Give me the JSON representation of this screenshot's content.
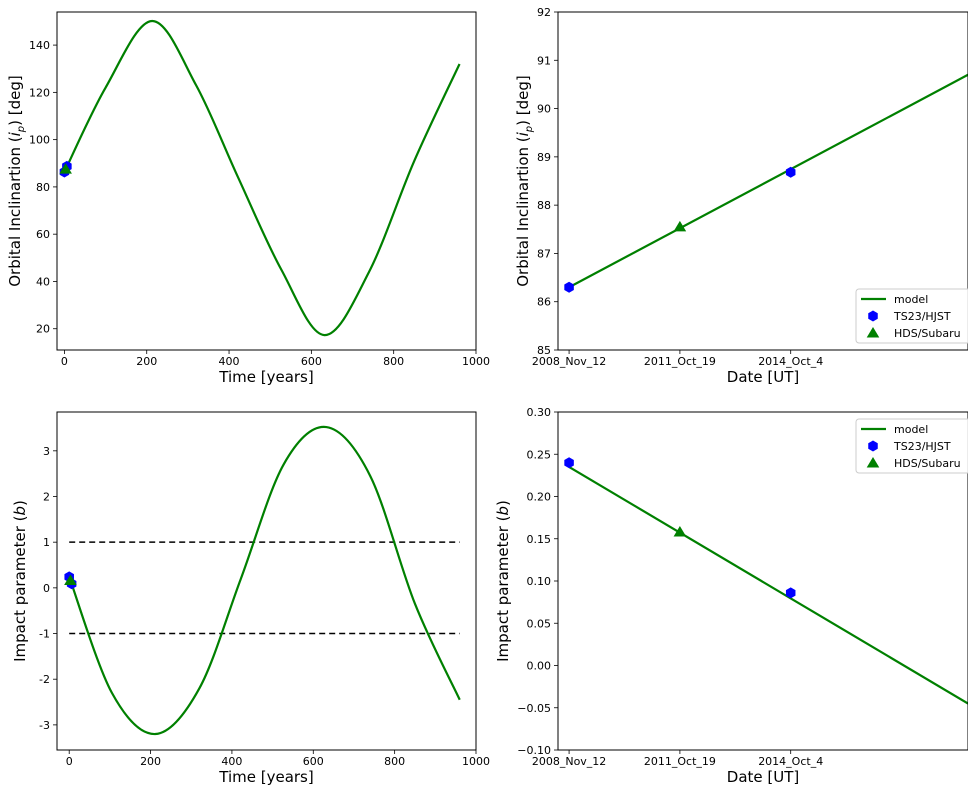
{
  "chart_data": [
    {
      "id": "tl",
      "type": "line",
      "xlabel": "Time [years]",
      "ylabel": "Orbital Inclinartion (i_p) [deg]",
      "ylabel_var": "i",
      "ylabel_sub": "p",
      "xlim": [
        -18,
        1000
      ],
      "ylim": [
        11,
        154
      ],
      "xticks": [
        0,
        200,
        400,
        600,
        800,
        1000
      ],
      "yticks": [
        20,
        40,
        60,
        80,
        100,
        120,
        140
      ],
      "model": {
        "name": "model",
        "x": [
          0,
          100,
          213,
          320,
          422,
          527,
          632,
          740,
          850,
          960
        ],
        "y": [
          86.3,
          122,
          150.2,
          123,
          84,
          45,
          17.3,
          44,
          91,
          132
        ]
      },
      "ts23": {
        "name": "TS23/HJST",
        "x": [
          0,
          6
        ],
        "y": [
          86.3,
          88.7
        ]
      },
      "hds": {
        "name": "HDS/Subaru",
        "x": [
          3
        ],
        "y": [
          87.5
        ]
      }
    },
    {
      "id": "tr",
      "type": "line",
      "xlabel": "Date [UT]",
      "ylabel": "Orbital Inclinartion (i_p) [deg]",
      "ylabel_var": "i",
      "ylabel_sub": "p",
      "xlim": [
        -0.3,
        10.8
      ],
      "ylim": [
        85,
        92
      ],
      "xticks": [
        0,
        3,
        6
      ],
      "xticklabels": [
        "2008_Nov_12",
        "2011_Oct_19",
        "2014_Oct_4"
      ],
      "yticks": [
        85,
        86,
        87,
        88,
        89,
        90,
        91,
        92
      ],
      "model": {
        "name": "model",
        "x": [
          0,
          10.8
        ],
        "y": [
          86.3,
          90.7
        ]
      },
      "ts23": {
        "name": "TS23/HJST",
        "x": [
          0,
          6
        ],
        "y": [
          86.3,
          88.68
        ]
      },
      "hds": {
        "name": "HDS/Subaru",
        "x": [
          3
        ],
        "y": [
          87.55
        ]
      },
      "legend": "lower right"
    },
    {
      "id": "bl",
      "type": "line",
      "xlabel": "Time [years]",
      "ylabel": "Impact parameter (b)",
      "ylabel_var": "b",
      "ylabel_sub": "",
      "xlim": [
        -30,
        1000
      ],
      "ylim": [
        -3.55,
        3.85
      ],
      "xticks": [
        0,
        200,
        400,
        600,
        800,
        1000
      ],
      "yticks": [
        -3,
        -2,
        -1,
        0,
        1,
        2,
        3
      ],
      "model": {
        "name": "model",
        "x": [
          0,
          105,
          212,
          320,
          422,
          527,
          632,
          740,
          850,
          960
        ],
        "y": [
          0.24,
          -2.3,
          -3.2,
          -2.2,
          0.2,
          2.7,
          3.52,
          2.45,
          -0.35,
          -2.45
        ]
      },
      "ts23": {
        "name": "TS23/HJST",
        "x": [
          0,
          6
        ],
        "y": [
          0.24,
          0.09
        ]
      },
      "hds": {
        "name": "HDS/Subaru",
        "x": [
          3
        ],
        "y": [
          0.16
        ]
      },
      "hlines": [
        1,
        -1
      ]
    },
    {
      "id": "br",
      "type": "line",
      "xlabel": "Date [UT]",
      "ylabel": "Impact parameter (b)",
      "ylabel_var": "b",
      "ylabel_sub": "",
      "xlim": [
        -0.3,
        10.8
      ],
      "ylim": [
        -0.1,
        0.3
      ],
      "xticks": [
        0,
        3,
        6
      ],
      "xticklabels": [
        "2008_Nov_12",
        "2011_Oct_19",
        "2014_Oct_4"
      ],
      "yticks": [
        -0.1,
        -0.05,
        0.0,
        0.05,
        0.1,
        0.15,
        0.2,
        0.25,
        0.3
      ],
      "yticklabels": [
        "−0.10",
        "−0.05",
        "0.00",
        "0.05",
        "0.10",
        "0.15",
        "0.20",
        "0.25",
        "0.30"
      ],
      "model": {
        "name": "model",
        "x": [
          0,
          10.8
        ],
        "y": [
          0.235,
          -0.045
        ]
      },
      "ts23": {
        "name": "TS23/HJST",
        "x": [
          0,
          6
        ],
        "y": [
          0.24,
          0.086
        ]
      },
      "hds": {
        "name": "HDS/Subaru",
        "x": [
          3
        ],
        "y": [
          0.158
        ]
      },
      "legend": "upper right"
    }
  ],
  "colors": {
    "model": "#008000",
    "ts23": "#0000ff",
    "hds": "#008000",
    "hline": "#000000"
  },
  "legend_labels": {
    "model": "model",
    "ts23": "TS23/HJST",
    "hds": "HDS/Subaru"
  }
}
